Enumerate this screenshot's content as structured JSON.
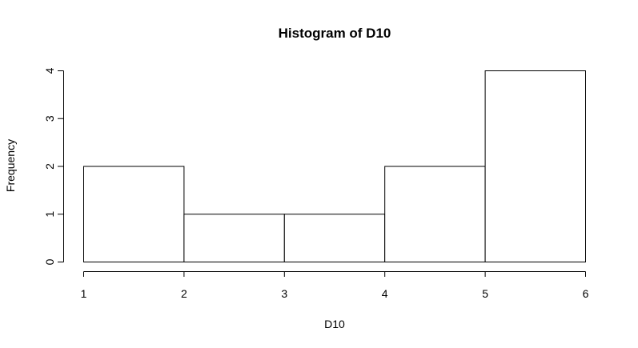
{
  "chart_data": {
    "type": "bar",
    "title": "Histogram of D10",
    "xlabel": "D10",
    "ylabel": "Frequency",
    "bins": [
      {
        "start": 1,
        "end": 2,
        "count": 2
      },
      {
        "start": 2,
        "end": 3,
        "count": 1
      },
      {
        "start": 3,
        "end": 4,
        "count": 1
      },
      {
        "start": 4,
        "end": 5,
        "count": 2
      },
      {
        "start": 5,
        "end": 6,
        "count": 4
      }
    ],
    "xlim": [
      1,
      6
    ],
    "ylim": [
      0,
      4
    ],
    "x_ticks": [
      "1",
      "2",
      "3",
      "4",
      "5",
      "6"
    ],
    "y_ticks": [
      "0",
      "1",
      "2",
      "3",
      "4"
    ],
    "grid": false,
    "colors": {
      "bar_fill": "#ffffff",
      "bar_stroke": "#000000",
      "axis": "#000000",
      "background": "#ffffff"
    }
  }
}
